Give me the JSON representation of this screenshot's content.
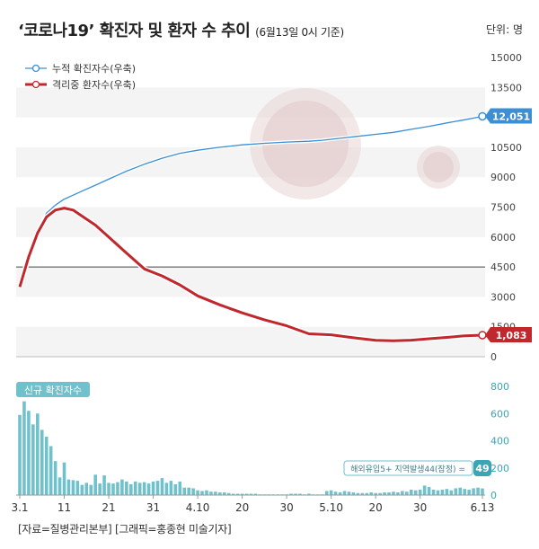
{
  "title": {
    "main": "‘코로나19’ 확진자 및 환자 수 추이",
    "sub": "(6월13일 0시 기준)"
  },
  "unit_label": "단위: 명",
  "footer": "[자료=질병관리본부] [그래픽=홍종현 미술기자]",
  "colors": {
    "cumulative": "#3a8fd6",
    "isolated": "#c0282e",
    "daily_bars": "#6fc1cc",
    "reference_line": "#444444"
  },
  "chart_data": [
    {
      "type": "line",
      "title": "",
      "legend_placement": "top-left",
      "y_axis_position": "right",
      "ylim": [
        0,
        15000
      ],
      "yticks": [
        0,
        1500,
        3000,
        4500,
        6000,
        7500,
        9000,
        10500,
        12000,
        13500,
        15000
      ],
      "ytick_labels": [
        "0",
        "1500",
        "3000",
        "4500",
        "6000",
        "7500",
        "9000",
        "10500",
        "12000",
        "13500",
        "15000"
      ],
      "reference_line_y": 4500,
      "x_day_range": [
        0,
        104
      ],
      "series": [
        {
          "name": "누적 확진자수(우축)",
          "color": "#3a8fd6",
          "end_label": "12,051",
          "x": [
            0,
            2,
            4,
            6,
            8,
            10,
            12,
            14,
            17,
            20,
            24,
            28,
            32,
            36,
            40,
            45,
            50,
            55,
            60,
            65,
            68,
            72,
            76,
            80,
            84,
            88,
            92,
            96,
            100,
            104
          ],
          "values": [
            3600,
            5200,
            6300,
            7200,
            7600,
            7900,
            8100,
            8300,
            8600,
            8900,
            9300,
            9650,
            9950,
            10200,
            10350,
            10500,
            10620,
            10700,
            10760,
            10800,
            10850,
            10950,
            11050,
            11150,
            11250,
            11400,
            11550,
            11720,
            11880,
            12051
          ]
        },
        {
          "name": "격리중 환자수(우축)",
          "color": "#c0282e",
          "end_label": "1,083",
          "x": [
            0,
            2,
            4,
            6,
            8,
            10,
            12,
            14,
            17,
            20,
            24,
            28,
            32,
            36,
            40,
            45,
            50,
            55,
            60,
            65,
            70,
            75,
            80,
            84,
            88,
            92,
            96,
            100,
            104
          ],
          "values": [
            3500,
            5000,
            6200,
            7000,
            7350,
            7450,
            7350,
            7050,
            6600,
            6000,
            5200,
            4400,
            4050,
            3600,
            3050,
            2600,
            2200,
            1850,
            1550,
            1150,
            1100,
            950,
            820,
            800,
            830,
            900,
            970,
            1050,
            1083
          ]
        }
      ]
    },
    {
      "type": "bar",
      "title": "신규 확진자수",
      "ylim": [
        0,
        800
      ],
      "yticks": [
        0,
        200,
        400,
        600,
        800
      ],
      "ytick_labels": [
        "0",
        "200",
        "400",
        "600",
        "800"
      ],
      "x_tick_labels": [
        "3.1",
        "11",
        "21",
        "31",
        "4.10",
        "20",
        "30",
        "5.10",
        "20",
        "30",
        "6.13"
      ],
      "x_tick_days": [
        0,
        10,
        20,
        30,
        40,
        50,
        60,
        70,
        80,
        90,
        104
      ],
      "annotation": "해외유입5+ 지역발생44(잠정) =",
      "last_value_label": "49",
      "values": [
        590,
        690,
        620,
        520,
        600,
        480,
        430,
        360,
        250,
        130,
        240,
        115,
        110,
        105,
        75,
        90,
        75,
        150,
        85,
        145,
        90,
        85,
        95,
        115,
        100,
        80,
        100,
        90,
        95,
        85,
        100,
        105,
        125,
        90,
        105,
        80,
        100,
        55,
        55,
        50,
        35,
        30,
        35,
        25,
        25,
        20,
        20,
        15,
        10,
        10,
        10,
        10,
        10,
        10,
        5,
        5,
        5,
        5,
        5,
        5,
        5,
        10,
        10,
        10,
        5,
        10,
        5,
        5,
        5,
        30,
        35,
        25,
        20,
        30,
        25,
        20,
        15,
        15,
        15,
        20,
        15,
        15,
        20,
        20,
        25,
        20,
        30,
        25,
        40,
        35,
        40,
        70,
        60,
        40,
        35,
        40,
        45,
        35,
        50,
        55,
        45,
        40,
        50,
        55,
        49
      ]
    }
  ]
}
